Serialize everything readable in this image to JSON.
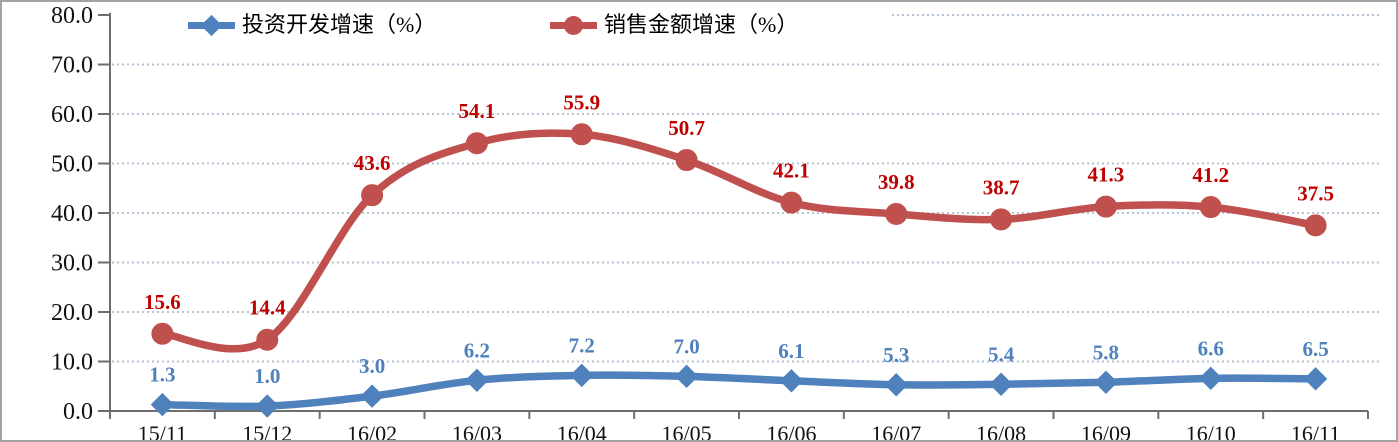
{
  "chart_data": {
    "type": "line",
    "title": "",
    "xlabel": "",
    "ylabel": "",
    "categories": [
      "15/11",
      "15/12",
      "16/02",
      "16/03",
      "16/04",
      "16/05",
      "16/06",
      "16/07",
      "16/08",
      "16/09",
      "16/10",
      "16/11"
    ],
    "series": [
      {
        "id": "investment-growth",
        "name": "投资开发增速（%）",
        "values": [
          1.3,
          1.0,
          3.0,
          6.2,
          7.2,
          7.0,
          6.1,
          5.3,
          5.4,
          5.8,
          6.6,
          6.5
        ],
        "color": "#4f81bd",
        "label_color": "#4f81bd",
        "marker": "diamond"
      },
      {
        "id": "sales-growth",
        "name": "销售金额增速（%）",
        "values": [
          15.6,
          14.4,
          43.6,
          54.1,
          55.9,
          50.7,
          42.1,
          39.8,
          38.7,
          41.3,
          41.2,
          37.5
        ],
        "color": "#c0504d",
        "label_color": "#c00000",
        "marker": "circle"
      }
    ],
    "ylim": [
      0,
      80
    ],
    "ytick_step": 10,
    "ytick_labels": [
      "0.0",
      "10.0",
      "20.0",
      "30.0",
      "40.0",
      "50.0",
      "60.0",
      "70.0",
      "80.0"
    ],
    "grid": "horizontal-dotted",
    "legend_position": "top-inside",
    "style": {
      "background": "#ffffff",
      "border_color": "#a3a3a3",
      "axis_color": "#6e6e6e",
      "gridline_color": "#b4c2d4",
      "tick_label_color": "#111111"
    }
  }
}
